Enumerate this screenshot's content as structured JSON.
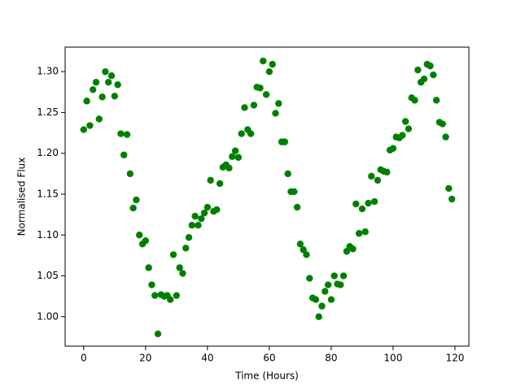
{
  "chart_data": {
    "type": "scatter",
    "xlabel": "Time (Hours)",
    "ylabel": "Normalised Flux",
    "color": "#008000",
    "x": [
      0,
      1,
      2,
      3,
      4,
      5,
      6,
      7,
      8,
      9,
      10,
      11,
      12,
      13,
      14,
      15,
      16,
      17,
      18,
      19,
      20,
      21,
      22,
      23,
      24,
      25,
      26,
      27,
      28,
      29,
      30,
      31,
      32,
      33,
      34,
      35,
      36,
      37,
      38,
      39,
      40,
      41,
      42,
      43,
      44,
      45,
      46,
      47,
      48,
      49,
      50,
      51,
      52,
      53,
      54,
      55,
      56,
      57,
      58,
      59,
      60,
      61,
      62,
      63,
      64,
      65,
      66,
      67,
      68,
      69,
      70,
      71,
      72,
      73,
      74,
      75,
      76,
      77,
      78,
      79,
      80,
      81,
      82,
      83,
      84,
      85,
      86,
      87,
      88,
      89,
      90,
      91,
      92,
      93,
      94,
      95,
      96,
      97,
      98,
      99,
      100,
      101,
      102,
      103,
      104,
      105,
      106,
      107,
      108,
      109,
      110,
      111,
      112,
      113,
      114,
      115,
      116,
      117,
      118,
      119
    ],
    "values": [
      1.229,
      1.264,
      1.234,
      1.278,
      1.287,
      1.242,
      1.269,
      1.3,
      1.287,
      1.295,
      1.27,
      1.284,
      1.224,
      1.198,
      1.223,
      1.175,
      1.133,
      1.143,
      1.1,
      1.089,
      1.093,
      1.06,
      1.039,
      1.026,
      0.979,
      1.027,
      1.025,
      1.026,
      1.021,
      1.076,
      1.026,
      1.06,
      1.053,
      1.084,
      1.097,
      1.112,
      1.123,
      1.112,
      1.12,
      1.127,
      1.134,
      1.167,
      1.129,
      1.131,
      1.163,
      1.183,
      1.186,
      1.182,
      1.196,
      1.203,
      1.195,
      1.224,
      1.256,
      1.229,
      1.224,
      1.259,
      1.281,
      1.28,
      1.313,
      1.272,
      1.3,
      1.309,
      1.249,
      1.261,
      1.214,
      1.214,
      1.175,
      1.153,
      1.153,
      1.134,
      1.089,
      1.082,
      1.076,
      1.047,
      1.023,
      1.021,
      1.0,
      1.013,
      1.031,
      1.039,
      1.021,
      1.05,
      1.04,
      1.039,
      1.05,
      1.08,
      1.086,
      1.083,
      1.138,
      1.102,
      1.132,
      1.104,
      1.139,
      1.172,
      1.141,
      1.167,
      1.18,
      1.178,
      1.177,
      1.204,
      1.206,
      1.22,
      1.219,
      1.222,
      1.239,
      1.23,
      1.268,
      1.265,
      1.302,
      1.287,
      1.291,
      1.309,
      1.307,
      1.296,
      1.265,
      1.238,
      1.236,
      1.22,
      1.157,
      1.144
    ],
    "xlim": [
      -6,
      124.5
    ],
    "ylim": [
      0.964,
      1.33
    ],
    "xticks": [
      0,
      20,
      40,
      60,
      80,
      100,
      120
    ],
    "yticks": [
      {
        "value": 1,
        "label": "1.00"
      },
      1.05,
      {
        "value": 1.1,
        "label": "1.10"
      },
      1.15,
      {
        "value": 1.2,
        "label": "1.20"
      },
      1.25,
      {
        "value": 1.3,
        "label": "1.30"
      }
    ]
  }
}
